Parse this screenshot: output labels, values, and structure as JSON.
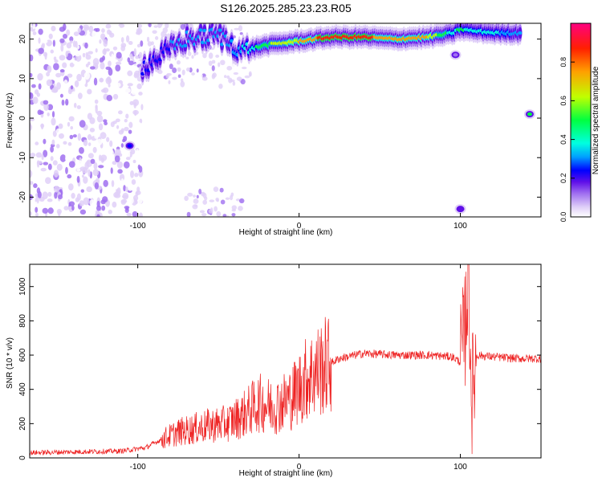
{
  "figure_title": "S126.2025.285.23.23.R05",
  "chart_data": [
    {
      "type": "heatmap",
      "xlabel": "Height of straight line (km)",
      "ylabel": "Frequency (Hz)",
      "xlim": [
        -167,
        150
      ],
      "ylim": [
        -25,
        24
      ],
      "x_ticks": [
        -100,
        0,
        100
      ],
      "y_ticks": [
        -20,
        -10,
        0,
        10,
        20
      ],
      "colorbar": {
        "label": "Normalized spectral amplitude",
        "range": [
          0,
          1
        ],
        "ticks": [
          "0.0",
          "0.2",
          "0.4",
          "0.6",
          "0.8"
        ],
        "colormap": [
          "#ffffff",
          "#e0d0f8",
          "#a070f0",
          "#6010e8",
          "#0000ff",
          "#00a0ff",
          "#00ffe0",
          "#00ff40",
          "#c0ff00",
          "#ffa000",
          "#ff2000",
          "#ff0080"
        ]
      },
      "ridge": {
        "description_points": [
          {
            "x": -97,
            "f": 13,
            "amp": 0.35
          },
          {
            "x": -85,
            "f": 16,
            "amp": 0.4
          },
          {
            "x": -70,
            "f": 20,
            "amp": 0.45
          },
          {
            "x": -50,
            "f": 21,
            "amp": 0.45
          },
          {
            "x": -35,
            "f": 17,
            "amp": 0.5
          },
          {
            "x": -20,
            "f": 18.5,
            "amp": 0.65
          },
          {
            "x": 0,
            "f": 19.5,
            "amp": 0.75
          },
          {
            "x": 20,
            "f": 20.5,
            "amp": 0.9
          },
          {
            "x": 40,
            "f": 20.5,
            "amp": 0.85
          },
          {
            "x": 60,
            "f": 20,
            "amp": 0.8
          },
          {
            "x": 80,
            "f": 20.5,
            "amp": 0.75
          },
          {
            "x": 95,
            "f": 21.5,
            "amp": 0.55
          },
          {
            "x": 100,
            "f": 22.5,
            "amp": 0.6
          },
          {
            "x": 110,
            "f": 22,
            "amp": 0.55
          },
          {
            "x": 125,
            "f": 21.5,
            "amp": 0.5
          },
          {
            "x": 138,
            "f": 21.5,
            "amp": 0.45
          }
        ],
        "extra_spots": [
          {
            "x": -105,
            "f": -7,
            "amp": 0.35
          },
          {
            "x": 143,
            "f": 1,
            "amp": 0.65
          },
          {
            "x": 100,
            "f": -23,
            "amp": 0.25
          },
          {
            "x": 97,
            "f": 16,
            "amp": 0.2
          }
        ]
      }
    },
    {
      "type": "line",
      "xlabel": "Height of straight line (km)",
      "ylabel": "SNR (10 * v/v)",
      "xlim": [
        -167,
        150
      ],
      "ylim": [
        0,
        1130
      ],
      "x_ticks": [
        -100,
        0,
        100
      ],
      "y_ticks": [
        0,
        200,
        400,
        600,
        800,
        1000
      ],
      "series": [
        {
          "color": "#ee2222",
          "x": [
            -167,
            -140,
            -110,
            -95,
            -85,
            -75,
            -65,
            -55,
            -45,
            -35,
            -25,
            -15,
            -5,
            5,
            15,
            25,
            40,
            60,
            80,
            95,
            100,
            103,
            105,
            107,
            110,
            120,
            135,
            150
          ],
          "y": [
            30,
            35,
            40,
            60,
            110,
            150,
            170,
            190,
            200,
            250,
            320,
            300,
            350,
            470,
            530,
            580,
            610,
            600,
            600,
            590,
            560,
            750,
            1100,
            350,
            600,
            590,
            580,
            580
          ]
        }
      ]
    }
  ]
}
